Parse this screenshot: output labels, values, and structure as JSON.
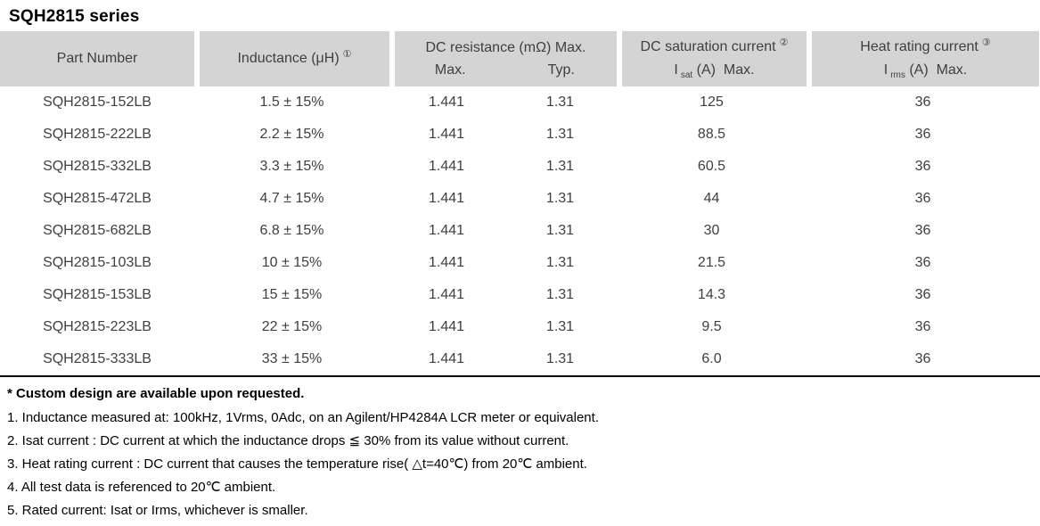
{
  "title": "SQH2815 series",
  "colors": {
    "header_bg": "#d4d4d4",
    "table_text": "#3f3f3f",
    "note_text": "#000000"
  },
  "table": {
    "header": {
      "part_number": "Part Number",
      "inductance": "Inductance (μH)",
      "inductance_note": "①",
      "dc_resistance": "DC resistance (mΩ) Max.",
      "dc_resistance_max": "Max.",
      "dc_resistance_typ": "Typ.",
      "dc_saturation": "DC saturation current",
      "dc_saturation_note": "②",
      "isat": {
        "prefix": "I",
        "sub": "sat",
        "suffix": "(A)  Max."
      },
      "heat_rating": "Heat rating current",
      "heat_rating_note": "③",
      "irms": {
        "prefix": "I",
        "sub": "rms",
        "suffix": "(A)  Max."
      }
    },
    "rows": [
      {
        "part_number": "SQH2815-152LB",
        "inductance": "1.5 ± 15%",
        "max": "1.441",
        "typ": "1.31",
        "isat": "125",
        "irms": "36"
      },
      {
        "part_number": "SQH2815-222LB",
        "inductance": "2.2 ± 15%",
        "max": "1.441",
        "typ": "1.31",
        "isat": "88.5",
        "irms": "36"
      },
      {
        "part_number": "SQH2815-332LB",
        "inductance": "3.3 ± 15%",
        "max": "1.441",
        "typ": "1.31",
        "isat": "60.5",
        "irms": "36"
      },
      {
        "part_number": "SQH2815-472LB",
        "inductance": "4.7 ± 15%",
        "max": "1.441",
        "typ": "1.31",
        "isat": "44",
        "irms": "36"
      },
      {
        "part_number": "SQH2815-682LB",
        "inductance": "6.8 ± 15%",
        "max": "1.441",
        "typ": "1.31",
        "isat": "30",
        "irms": "36"
      },
      {
        "part_number": "SQH2815-103LB",
        "inductance": "10 ± 15%",
        "max": "1.441",
        "typ": "1.31",
        "isat": "21.5",
        "irms": "36"
      },
      {
        "part_number": "SQH2815-153LB",
        "inductance": "15 ± 15%",
        "max": "1.441",
        "typ": "1.31",
        "isat": "14.3",
        "irms": "36"
      },
      {
        "part_number": "SQH2815-223LB",
        "inductance": "22 ± 15%",
        "max": "1.441",
        "typ": "1.31",
        "isat": "9.5",
        "irms": "36"
      },
      {
        "part_number": "SQH2815-333LB",
        "inductance": "33 ± 15%",
        "max": "1.441",
        "typ": "1.31",
        "isat": "6.0",
        "irms": "36"
      }
    ]
  },
  "footnotes": {
    "star": "* Custom design are available upon requested.",
    "items": [
      "1. Inductance measured at: 100kHz, 1Vrms, 0Adc, on an Agilent/HP4284A LCR meter or equivalent.",
      "2. Isat current : DC current at which the inductance drops ≦ 30% from its value without current.",
      "3. Heat rating current : DC current that causes the temperature rise( △t=40℃) from 20℃ ambient.",
      "4. All test data is referenced to 20℃ ambient.",
      "5. Rated current: Isat or Irms, whichever is smaller."
    ]
  }
}
